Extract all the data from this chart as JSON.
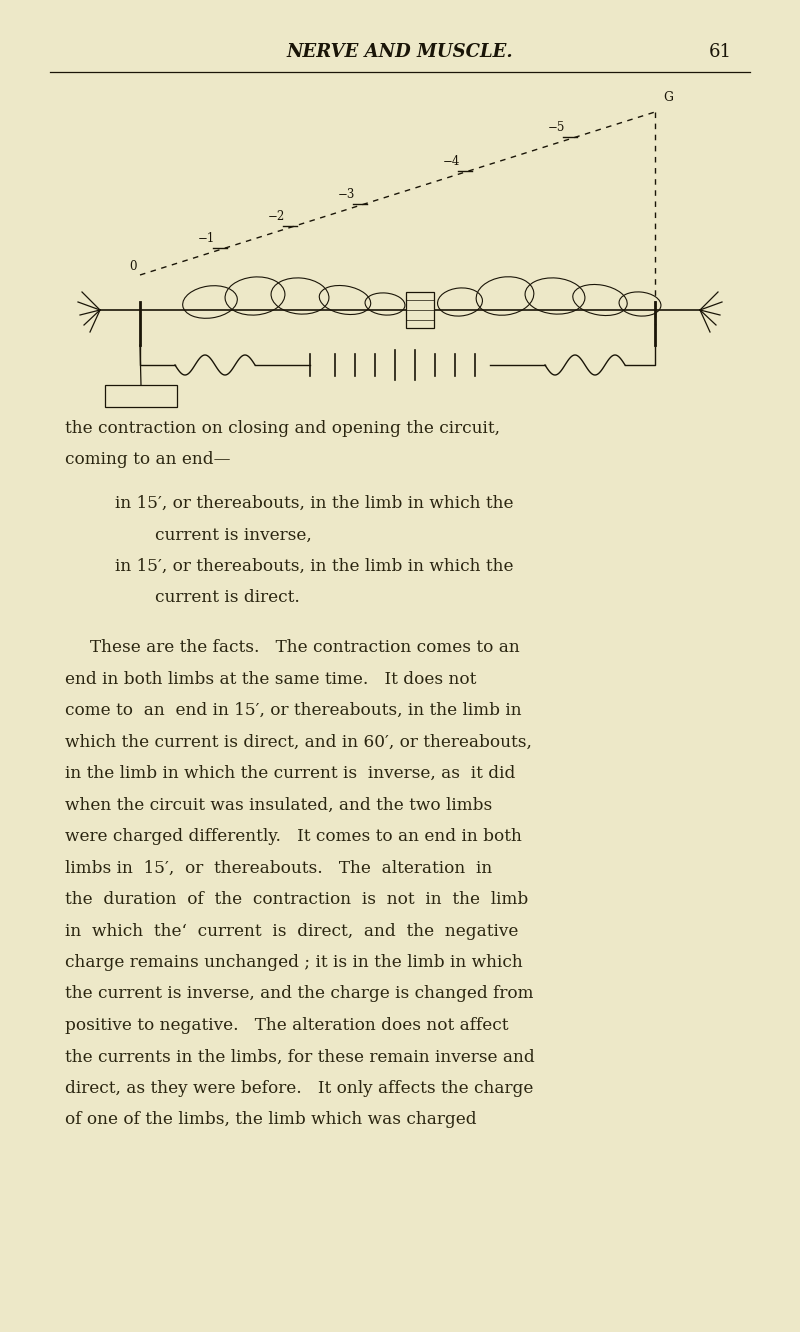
{
  "bg_color": "#ede8c8",
  "header_title": "NERVE AND MUSCLE.",
  "header_page": "61",
  "body_text_color": "#2a2510",
  "title_color": "#1a1508",
  "paragraph1_lines": [
    "the contraction on closing and opening the circuit,",
    "coming to an end—"
  ],
  "bullet1_line1": "in 15′, or thereabouts, in the limb in which the",
  "bullet1_line2": "current is inverse,",
  "bullet2_line1": "in 15′, or thereabouts, in the limb in which the",
  "bullet2_line2": "current is direct.",
  "paragraph2_lines": [
    "These are the facts.   The contraction comes to an",
    "end in both limbs at the same time.   It does not",
    "come to  an  end in 15′, or thereabouts, in the limb in",
    "which the current is direct, and in 60′, or thereabouts,",
    "in the limb in which the current is  inverse, as  it did",
    "when the circuit was insulated, and the two limbs",
    "were charged differently.   It comes to an end in both",
    "limbs in  15′,  or  thereabouts.   The  alteration  in",
    "the  duration  of  the  contraction  is  not  in  the  limb",
    "in  which  the‘  current  is  direct,  and  the  negative",
    "charge remains unchanged ; it is in the limb in which",
    "the current is inverse, and the charge is changed from",
    "positive to negative.   The alteration does not affect",
    "the currents in the limbs, for these remain inverse and",
    "direct, as they were before.   It only affects the charge",
    "of one of the limbs, the limb which was charged"
  ],
  "line_color": "#1a1508"
}
